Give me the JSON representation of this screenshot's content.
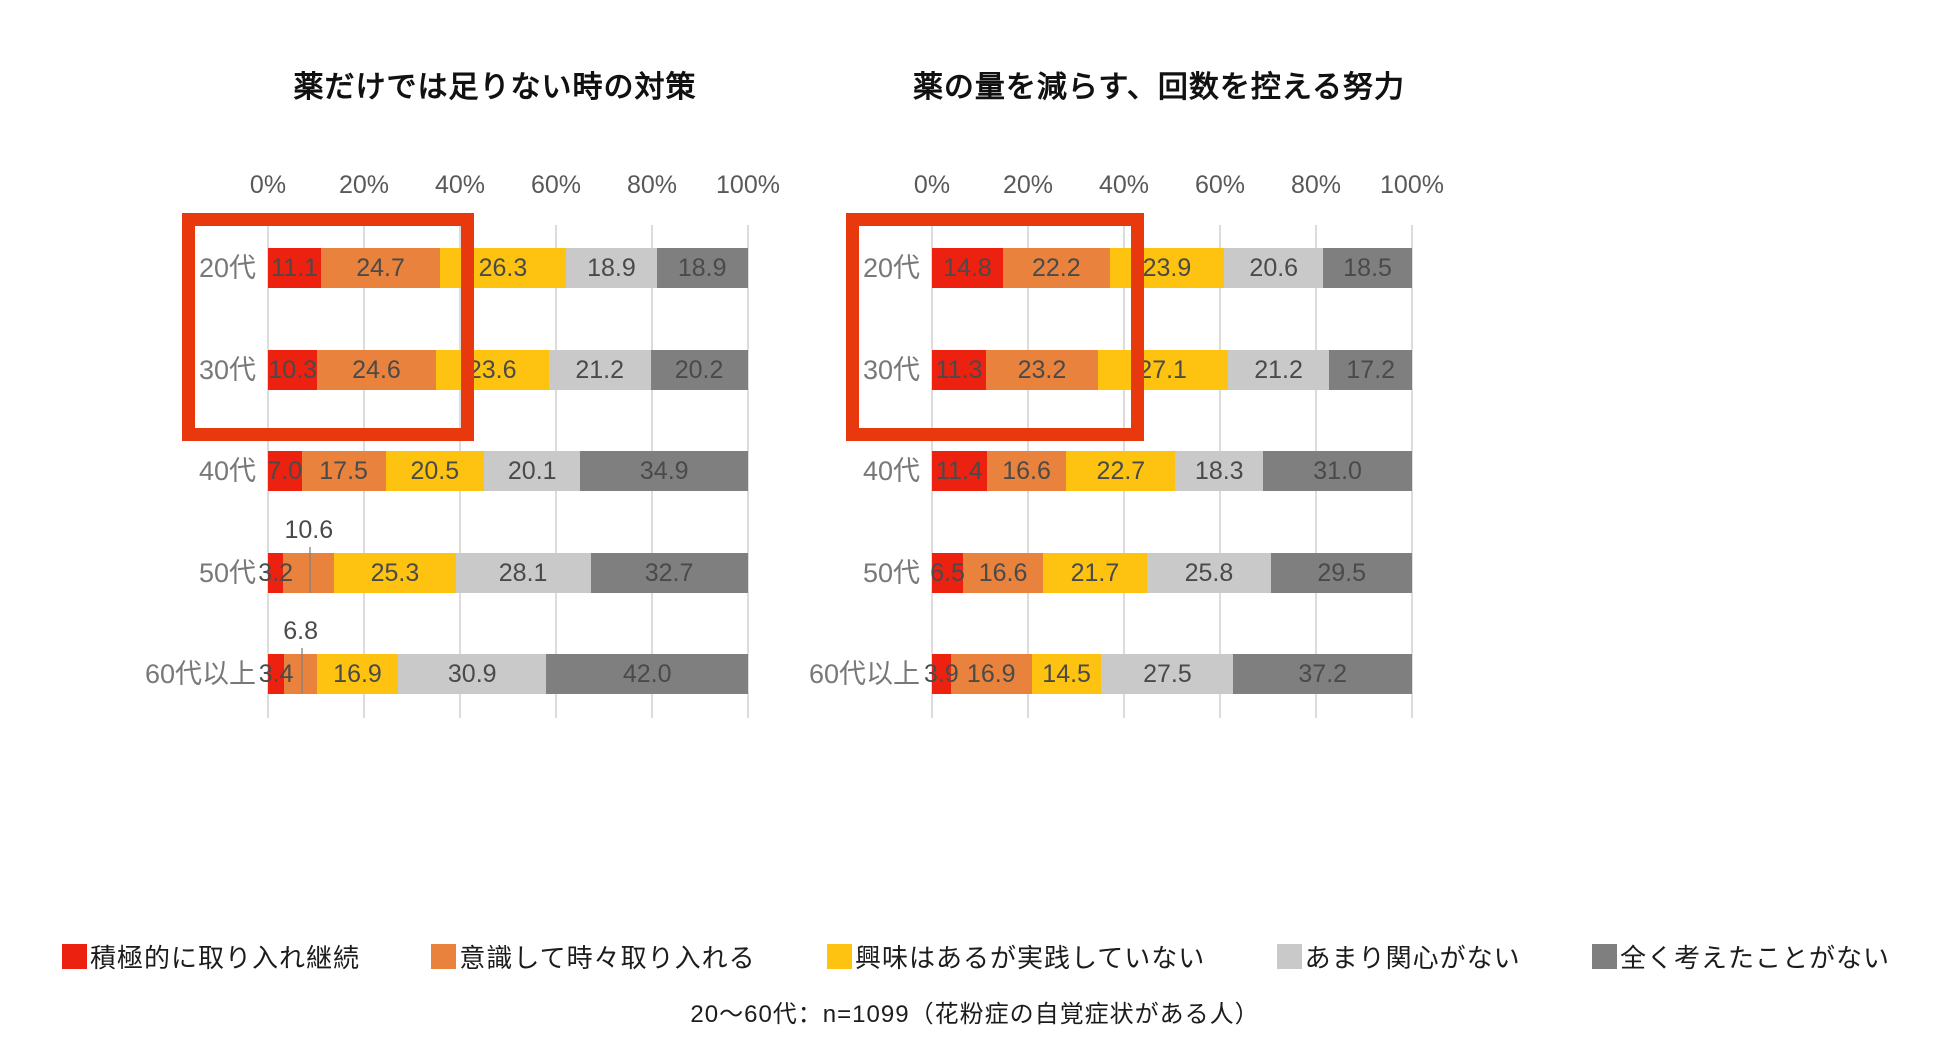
{
  "footnote": "20〜60代：n=1099（花粉症の自覚症状がある人）",
  "colors": {
    "series": [
      "#ec2110",
      "#e8823c",
      "#fec210",
      "#c9c9c9",
      "#7f7f7f"
    ],
    "highlight_box": "#e8380d",
    "gridline": "#dcdcdc",
    "value_text": "#4a4a4a"
  },
  "legend": [
    {
      "label": "積極的に取り入れ継続",
      "color": "#ec2110"
    },
    {
      "label": "意識して時々取り入れる",
      "color": "#e8823c"
    },
    {
      "label": "興味はあるが実践していない",
      "color": "#fec210"
    },
    {
      "label": "あまり関心がない",
      "color": "#c9c9c9"
    },
    {
      "label": "全く考えたことがない",
      "color": "#7f7f7f"
    }
  ],
  "chart_data": [
    {
      "type": "bar",
      "stacked": true,
      "orientation": "horizontal",
      "title": "薬だけでは足りない時の対策",
      "categories": [
        "20代",
        "30代",
        "40代",
        "50代",
        "60代以上"
      ],
      "series": [
        {
          "name": "積極的に取り入れ継続",
          "color": "#ec2110",
          "values": [
            11.1,
            10.3,
            7.0,
            3.2,
            3.4
          ]
        },
        {
          "name": "意識して時々取り入れる",
          "color": "#e8823c",
          "values": [
            24.7,
            24.6,
            17.5,
            10.6,
            6.8
          ]
        },
        {
          "name": "興味はあるが実践していない",
          "color": "#fec210",
          "values": [
            26.3,
            23.6,
            20.5,
            25.3,
            16.9
          ]
        },
        {
          "name": "あまり関心がない",
          "color": "#c9c9c9",
          "values": [
            18.9,
            21.2,
            20.1,
            28.1,
            30.9
          ]
        },
        {
          "name": "全く考えたことがない",
          "color": "#7f7f7f",
          "values": [
            18.9,
            20.2,
            34.9,
            32.7,
            42.0
          ]
        }
      ],
      "xlim": [
        0,
        100
      ],
      "x_ticks": [
        "0%",
        "20%",
        "40%",
        "60%",
        "80%",
        "100%"
      ],
      "grid": true,
      "callout_labels": [
        {
          "category": "50代",
          "series_index": 1,
          "value": 10.6
        },
        {
          "category": "60代以上",
          "series_index": 1,
          "value": 6.8
        }
      ],
      "highlight_box": {
        "categories": [
          "20代",
          "30代"
        ],
        "series_covered": 2
      }
    },
    {
      "type": "bar",
      "stacked": true,
      "orientation": "horizontal",
      "title": "薬の量を減らす、回数を控える努力",
      "categories": [
        "20代",
        "30代",
        "40代",
        "50代",
        "60代以上"
      ],
      "series": [
        {
          "name": "積極的に取り入れ継続",
          "color": "#ec2110",
          "values": [
            14.8,
            11.3,
            11.4,
            6.5,
            3.9
          ]
        },
        {
          "name": "意識して時々取り入れる",
          "color": "#e8823c",
          "values": [
            22.2,
            23.2,
            16.6,
            16.6,
            16.9
          ]
        },
        {
          "name": "興味はあるが実践していない",
          "color": "#fec210",
          "values": [
            23.9,
            27.1,
            22.7,
            21.7,
            14.5
          ]
        },
        {
          "name": "あまり関心がない",
          "color": "#c9c9c9",
          "values": [
            20.6,
            21.2,
            18.3,
            25.8,
            27.5
          ]
        },
        {
          "name": "全く考えたことがない",
          "color": "#7f7f7f",
          "values": [
            18.5,
            17.2,
            31.0,
            29.5,
            37.2
          ]
        }
      ],
      "xlim": [
        0,
        100
      ],
      "x_ticks": [
        "0%",
        "20%",
        "40%",
        "60%",
        "80%",
        "100%"
      ],
      "grid": true,
      "callout_labels": [],
      "highlight_box": {
        "categories": [
          "20代",
          "30代"
        ],
        "series_covered": 2
      }
    }
  ]
}
